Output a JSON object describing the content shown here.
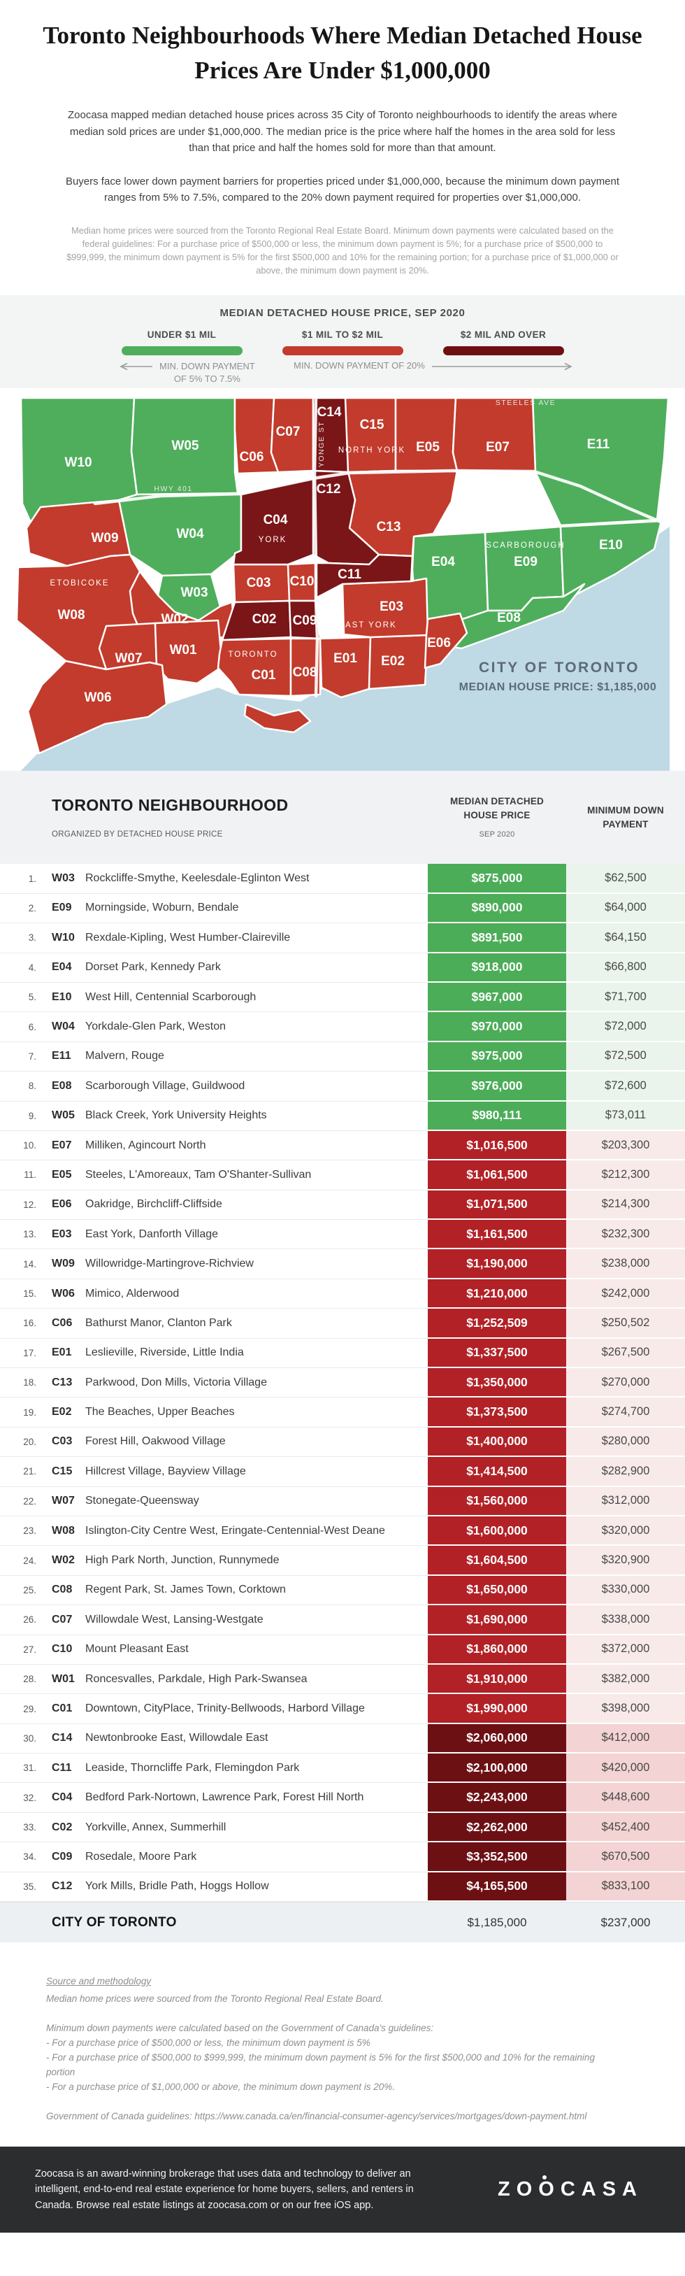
{
  "page": {
    "title": "Toronto Neighbourhoods Where Median Detached House Prices Are Under $1,000,000",
    "intro_1": "Zoocasa mapped median detached house prices across 35 City of Toronto neighbourhoods to identify the areas where median sold prices are under $1,000,000. The median price is the price where half the homes in the area sold for less than that price and half the homes sold for more than that amount.",
    "intro_2": "Buyers face lower down payment barriers for properties priced under $1,000,000, because the minimum down payment ranges from 5% to 7.5%, compared to the 20% down payment required for properties over $1,000,000.",
    "intro_note": "Median home prices were sourced from the Toronto Regional Real Estate Board. Minimum down payments were calculated based on the federal guidelines: For a purchase price of $500,000 or less, the minimum down payment is 5%; for a purchase price of $500,000 to $999,999, the minimum down payment is 5% for the first $500,000 and 10% for the remaining portion; for a purchase price of $1,000,000 or above, the minimum down payment is 20%."
  },
  "legend": {
    "title": "MEDIAN DETACHED HOUSE PRICE, SEP 2020",
    "items": [
      {
        "label": "UNDER $1 MIL",
        "color": "#4fae5c"
      },
      {
        "label": "$1 MIL TO $2 MIL",
        "color": "#c23b2c"
      },
      {
        "label": "$2 MIL AND OVER",
        "color": "#6e1013"
      }
    ],
    "arrow_left_line1": "MIN. DOWN PAYMENT",
    "arrow_left_line2": "OF 5% TO 7.5%",
    "arrow_right": "MIN. DOWN PAYMENT OF 20%"
  },
  "map": {
    "labels": {
      "W10": "W10",
      "W05": "W05",
      "W04": "W04",
      "W03": "W03",
      "W09": "W09",
      "W08": "W08",
      "W02": "W02",
      "W07": "W07",
      "W01": "W01",
      "W06": "W06",
      "C06": "C06",
      "C07": "C07",
      "C14": "C14",
      "C15": "C15",
      "C12": "C12",
      "C13": "C13",
      "C04": "C04",
      "C03": "C03",
      "C10": "C10",
      "C02": "C02",
      "C09": "C09",
      "C11": "C11",
      "C01": "C01",
      "C08": "C08",
      "E05": "E05",
      "E07": "E07",
      "E11": "E11",
      "E04": "E04",
      "E09": "E09",
      "E10": "E10",
      "E08": "E08",
      "E03": "E03",
      "E06": "E06",
      "E01": "E01",
      "E02": "E02"
    },
    "area_labels": {
      "etobicoke": "ETOBICOKE",
      "york": "YORK",
      "north_york": "NORTH YORK",
      "east_york": "EAST YORK",
      "toronto": "TORONTO",
      "scarborough": "SCARBOROUGH"
    },
    "roads": {
      "hwy401": "HWY 401",
      "yonge": "YONGE ST",
      "steeles": "STEELES AVE"
    },
    "city_label": "CITY OF TORONTO",
    "city_price": "MEDIAN HOUSE PRICE: $1,185,000"
  },
  "table": {
    "header": {
      "col1": "TORONTO NEIGHBOURHOOD",
      "col1_sub": "ORGANIZED BY DETACHED HOUSE PRICE",
      "col2_line1": "MEDIAN DETACHED",
      "col2_line2": "HOUSE PRICE",
      "col2_sub": "SEP 2020",
      "col3_line1": "MINIMUM DOWN",
      "col3_line2": "PAYMENT"
    },
    "rows": [
      {
        "rank": "1.",
        "code": "W03",
        "name": "Rockcliffe-Smythe, Keelesdale-Eglinton West",
        "price": "$875,000",
        "down": "$62,500",
        "tier": "green"
      },
      {
        "rank": "2.",
        "code": "E09",
        "name": "Morningside, Woburn, Bendale",
        "price": "$890,000",
        "down": "$64,000",
        "tier": "green"
      },
      {
        "rank": "3.",
        "code": "W10",
        "name": "Rexdale-Kipling, West Humber-Claireville",
        "price": "$891,500",
        "down": "$64,150",
        "tier": "green"
      },
      {
        "rank": "4.",
        "code": "E04",
        "name": "Dorset Park, Kennedy Park",
        "price": "$918,000",
        "down": "$66,800",
        "tier": "green"
      },
      {
        "rank": "5.",
        "code": "E10",
        "name": "West Hill, Centennial Scarborough",
        "price": "$967,000",
        "down": "$71,700",
        "tier": "green"
      },
      {
        "rank": "6.",
        "code": "W04",
        "name": "Yorkdale-Glen Park, Weston",
        "price": "$970,000",
        "down": "$72,000",
        "tier": "green"
      },
      {
        "rank": "7.",
        "code": "E11",
        "name": "Malvern, Rouge",
        "price": "$975,000",
        "down": "$72,500",
        "tier": "green"
      },
      {
        "rank": "8.",
        "code": "E08",
        "name": "Scarborough Village, Guildwood",
        "price": "$976,000",
        "down": "$72,600",
        "tier": "green"
      },
      {
        "rank": "9.",
        "code": "W05",
        "name": "Black Creek, York University Heights",
        "price": "$980,111",
        "down": "$73,011",
        "tier": "green"
      },
      {
        "rank": "10.",
        "code": "E07",
        "name": "Milliken, Agincourt North",
        "price": "$1,016,500",
        "down": "$203,300",
        "tier": "red"
      },
      {
        "rank": "11.",
        "code": "E05",
        "name": "Steeles, L'Amoreaux, Tam O'Shanter-Sullivan",
        "price": "$1,061,500",
        "down": "$212,300",
        "tier": "red"
      },
      {
        "rank": "12.",
        "code": "E06",
        "name": "Oakridge, Birchcliff-Cliffside",
        "price": "$1,071,500",
        "down": "$214,300",
        "tier": "red"
      },
      {
        "rank": "13.",
        "code": "E03",
        "name": "East York, Danforth Village",
        "price": "$1,161,500",
        "down": "$232,300",
        "tier": "red"
      },
      {
        "rank": "14.",
        "code": "W09",
        "name": "Willowridge-Martingrove-Richview",
        "price": "$1,190,000",
        "down": "$238,000",
        "tier": "red"
      },
      {
        "rank": "15.",
        "code": "W06",
        "name": "Mimico, Alderwood",
        "price": "$1,210,000",
        "down": "$242,000",
        "tier": "red"
      },
      {
        "rank": "16.",
        "code": "C06",
        "name": "Bathurst Manor, Clanton Park",
        "price": "$1,252,509",
        "down": "$250,502",
        "tier": "red"
      },
      {
        "rank": "17.",
        "code": "E01",
        "name": "Leslieville, Riverside, Little India",
        "price": "$1,337,500",
        "down": "$267,500",
        "tier": "red"
      },
      {
        "rank": "18.",
        "code": "C13",
        "name": "Parkwood, Don Mills, Victoria Village",
        "price": "$1,350,000",
        "down": "$270,000",
        "tier": "red"
      },
      {
        "rank": "19.",
        "code": "E02",
        "name": "The Beaches, Upper Beaches",
        "price": "$1,373,500",
        "down": "$274,700",
        "tier": "red"
      },
      {
        "rank": "20.",
        "code": "C03",
        "name": "Forest Hill, Oakwood Village",
        "price": "$1,400,000",
        "down": "$280,000",
        "tier": "red"
      },
      {
        "rank": "21.",
        "code": "C15",
        "name": "Hillcrest Village, Bayview Village",
        "price": "$1,414,500",
        "down": "$282,900",
        "tier": "red"
      },
      {
        "rank": "22.",
        "code": "W07",
        "name": "Stonegate-Queensway",
        "price": "$1,560,000",
        "down": "$312,000",
        "tier": "red"
      },
      {
        "rank": "23.",
        "code": "W08",
        "name": "Islington-City Centre West, Eringate-Centennial-West Deane",
        "price": "$1,600,000",
        "down": "$320,000",
        "tier": "red"
      },
      {
        "rank": "24.",
        "code": "W02",
        "name": "High Park North, Junction, Runnymede",
        "price": "$1,604,500",
        "down": "$320,900",
        "tier": "red"
      },
      {
        "rank": "25.",
        "code": "C08",
        "name": "Regent Park, St. James Town, Corktown",
        "price": "$1,650,000",
        "down": "$330,000",
        "tier": "red"
      },
      {
        "rank": "26.",
        "code": "C07",
        "name": "Willowdale West, Lansing-Westgate",
        "price": "$1,690,000",
        "down": "$338,000",
        "tier": "red"
      },
      {
        "rank": "27.",
        "code": "C10",
        "name": "Mount Pleasant East",
        "price": "$1,860,000",
        "down": "$372,000",
        "tier": "red"
      },
      {
        "rank": "28.",
        "code": "W01",
        "name": "Roncesvalles, Parkdale, High Park-Swansea",
        "price": "$1,910,000",
        "down": "$382,000",
        "tier": "red"
      },
      {
        "rank": "29.",
        "code": "C01",
        "name": "Downtown, CityPlace, Trinity-Bellwoods, Harbord Village",
        "price": "$1,990,000",
        "down": "$398,000",
        "tier": "red"
      },
      {
        "rank": "30.",
        "code": "C14",
        "name": "Newtonbrooke East, Willowdale East",
        "price": "$2,060,000",
        "down": "$412,000",
        "tier": "darkred"
      },
      {
        "rank": "31.",
        "code": "C11",
        "name": "Leaside, Thorncliffe Park, Flemingdon Park",
        "price": "$2,100,000",
        "down": "$420,000",
        "tier": "darkred"
      },
      {
        "rank": "32.",
        "code": "C04",
        "name": "Bedford Park-Nortown, Lawrence Park, Forest Hill North",
        "price": "$2,243,000",
        "down": "$448,600",
        "tier": "darkred"
      },
      {
        "rank": "33.",
        "code": "C02",
        "name": "Yorkville, Annex, Summerhill",
        "price": "$2,262,000",
        "down": "$452,400",
        "tier": "darkred"
      },
      {
        "rank": "34.",
        "code": "C09",
        "name": "Rosedale, Moore Park",
        "price": "$3,352,500",
        "down": "$670,500",
        "tier": "darkred"
      },
      {
        "rank": "35.",
        "code": "C12",
        "name": "York Mills, Bridle Path, Hoggs Hollow",
        "price": "$4,165,500",
        "down": "$833,100",
        "tier": "darkred"
      }
    ],
    "city_row": {
      "label": "CITY OF TORONTO",
      "price": "$1,185,000",
      "down": "$237,000"
    }
  },
  "methodology": {
    "heading": "Source and methodology",
    "lines": [
      "Median home prices were sourced from the Toronto Regional Real Estate Board.",
      "",
      "Minimum down payments were calculated based on the Government of Canada's guidelines:",
      "- For a purchase price of $500,000 or less, the minimum down payment is 5%",
      "- For a purchase price of $500,000 to $999,999, the minimum down payment is 5% for the first $500,000 and 10% for the remaining portion",
      "- For a purchase price of $1,000,000 or above, the minimum down payment is 20%.",
      "",
      "Government of Canada guidelines: https://www.canada.ca/en/financial-consumer-agency/services/mortgages/down-payment.html"
    ]
  },
  "footer": {
    "about": "Zoocasa is an award-winning brokerage that uses data and technology to deliver an intelligent, end-to-end real estate experience for home buyers, sellers, and renters in Canada. Browse real estate listings at zoocasa.com or on our free iOS app.",
    "logo": "ZOOCASA"
  },
  "colors": {
    "table_green": "#4cad58",
    "table_red": "#b22126",
    "table_dark_red": "#6d1014",
    "tint_green": "#eaf4ec",
    "tint_red": "#f9eaea",
    "tint_dark_red": "#f3d3d3",
    "map_green": "#4fae5c",
    "map_red": "#c23b2c",
    "map_dark_red": "#7a1518",
    "water": "#bfd9e5",
    "legend_bg": "#f3f4f4",
    "footer_bg": "#2b2d2f"
  }
}
